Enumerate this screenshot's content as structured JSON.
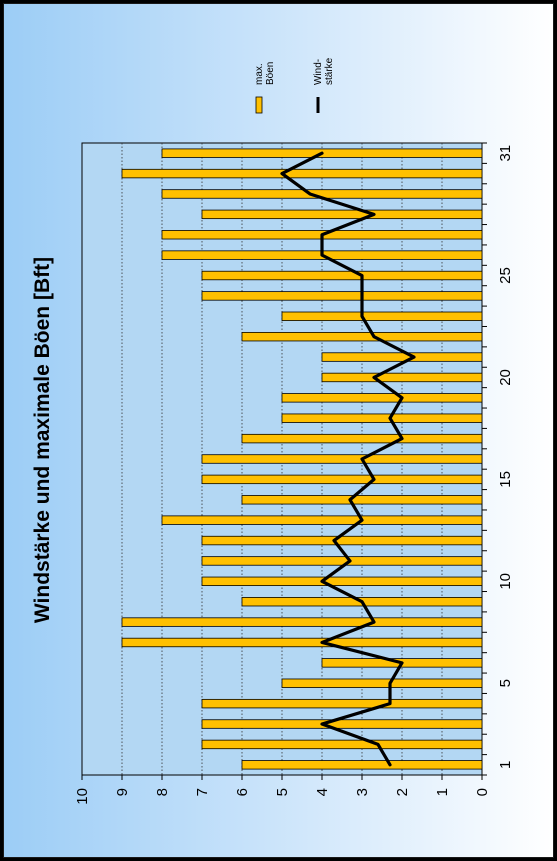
{
  "chart_data": {
    "type": "bar",
    "orientation": "rotated-90-ccw",
    "title": "Windstärke und maximale Böen [Bft]",
    "xlabel": "",
    "ylabel": "",
    "ylim": [
      0,
      10
    ],
    "y_ticks": [
      "0",
      "1",
      "2",
      "3",
      "4",
      "5",
      "6",
      "7",
      "8",
      "9",
      "10"
    ],
    "x_tick_labels": [
      "1",
      "5",
      "10",
      "15",
      "20",
      "25",
      "31"
    ],
    "grid": "horizontal dotted",
    "legend_position": "top-right",
    "categories": [
      1,
      2,
      3,
      4,
      5,
      6,
      7,
      8,
      9,
      10,
      11,
      12,
      13,
      14,
      15,
      16,
      17,
      18,
      19,
      20,
      21,
      22,
      23,
      24,
      25,
      26,
      27,
      28,
      29,
      30,
      31
    ],
    "series": [
      {
        "name": "max. Böen",
        "kind": "bar",
        "color": "#FFC000",
        "values": [
          6,
          7,
          7,
          7,
          5,
          4,
          9,
          9,
          6,
          7,
          7,
          7,
          8,
          6,
          7,
          7,
          6,
          5,
          5,
          4,
          4,
          6,
          5,
          7,
          7,
          8,
          8,
          7,
          8,
          9,
          8
        ]
      },
      {
        "name": "Wind-stärke",
        "kind": "line",
        "color": "#000000",
        "values": [
          2.3,
          2.6,
          4,
          2.3,
          2.3,
          2,
          4,
          2.7,
          3,
          4,
          3.3,
          3.7,
          3,
          3.3,
          2.7,
          3,
          2,
          2.3,
          2,
          2.7,
          1.7,
          2.7,
          3,
          3,
          3,
          4,
          4,
          2.7,
          4.3,
          5,
          4
        ]
      }
    ]
  },
  "legend": {
    "gust_line1": "max.",
    "gust_line2": "Böen",
    "wind_line1": "Wind-",
    "wind_line2": "stärke"
  },
  "colors": {
    "bar": "#FFC000",
    "line": "#000000",
    "plot_bg": "#b3d7f3"
  }
}
